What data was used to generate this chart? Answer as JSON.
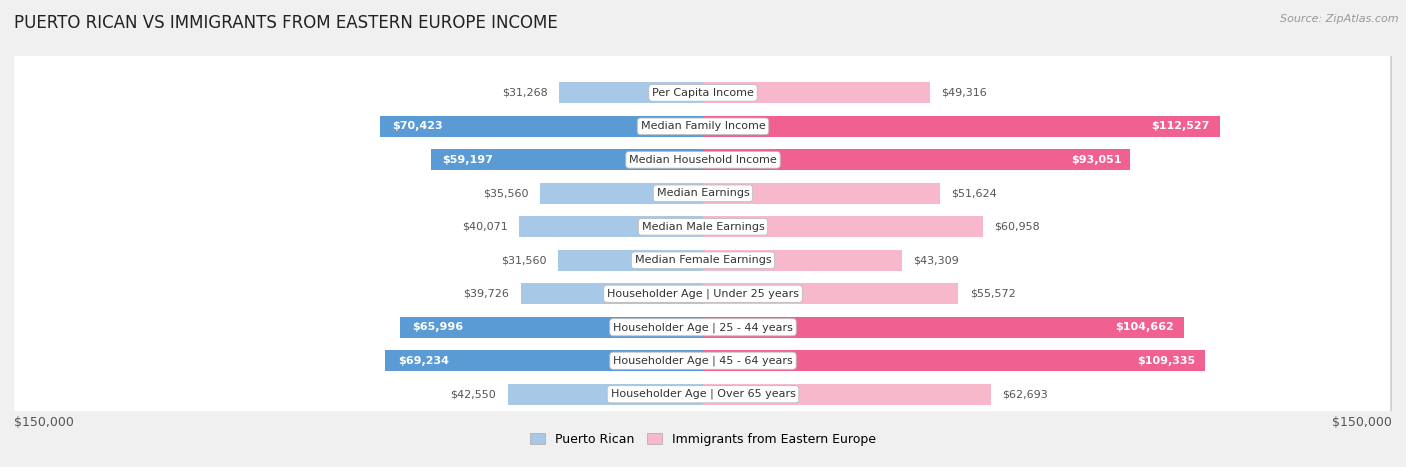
{
  "title": "PUERTO RICAN VS IMMIGRANTS FROM EASTERN EUROPE INCOME",
  "source": "Source: ZipAtlas.com",
  "categories": [
    "Per Capita Income",
    "Median Family Income",
    "Median Household Income",
    "Median Earnings",
    "Median Male Earnings",
    "Median Female Earnings",
    "Householder Age | Under 25 years",
    "Householder Age | 25 - 44 years",
    "Householder Age | 45 - 64 years",
    "Householder Age | Over 65 years"
  ],
  "puerto_rican": [
    31268,
    70423,
    59197,
    35560,
    40071,
    31560,
    39726,
    65996,
    69234,
    42550
  ],
  "eastern_europe": [
    49316,
    112527,
    93051,
    51624,
    60958,
    43309,
    55572,
    104662,
    109335,
    62693
  ],
  "puerto_rican_labels": [
    "$31,268",
    "$70,423",
    "$59,197",
    "$35,560",
    "$40,071",
    "$31,560",
    "$39,726",
    "$65,996",
    "$69,234",
    "$42,550"
  ],
  "eastern_europe_labels": [
    "$49,316",
    "$112,527",
    "$93,051",
    "$51,624",
    "$60,958",
    "$43,309",
    "$55,572",
    "$104,662",
    "$109,335",
    "$62,693"
  ],
  "max_val": 150000,
  "bar_color_pr_light": "#A8C8E8",
  "bar_color_pr_dark": "#5B9BD5",
  "bar_color_ee_light": "#F8B8CC",
  "bar_color_ee_dark": "#F06090",
  "bg_color": "#f0f0f0",
  "row_bg_white": "#ffffff",
  "row_border": "#d0d0d0",
  "legend_pr": "Puerto Rican",
  "legend_ee": "Immigrants from Eastern Europe",
  "x_label_left": "$150,000",
  "x_label_right": "$150,000",
  "pr_dark_threshold": 55000,
  "ee_dark_threshold": 85000,
  "title_fontsize": 12,
  "source_fontsize": 8,
  "label_fontsize": 8,
  "cat_fontsize": 8
}
